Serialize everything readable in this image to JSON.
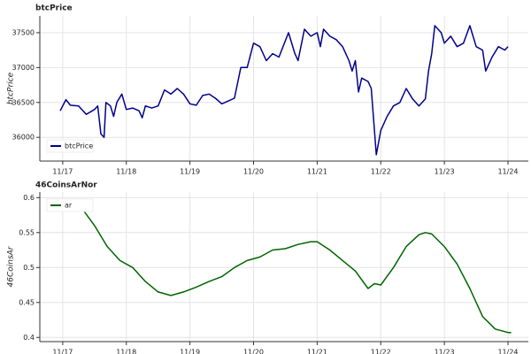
{
  "chart_data": [
    {
      "type": "line",
      "title": "btcPrice",
      "ylabel": "btcPrice",
      "legend": "lower left",
      "grid": true,
      "xlim": [
        16.64,
        24.32
      ],
      "ylim": [
        35660,
        37740
      ],
      "xticks": [
        {
          "value": 17,
          "label": "11/17"
        },
        {
          "value": 18,
          "label": "11/18"
        },
        {
          "value": 19,
          "label": "11/19"
        },
        {
          "value": 20,
          "label": "11/20"
        },
        {
          "value": 21,
          "label": "11/21"
        },
        {
          "value": 22,
          "label": "11/22"
        },
        {
          "value": 23,
          "label": "11/23"
        },
        {
          "value": 24,
          "label": "11/24"
        }
      ],
      "yticks": [
        36000,
        36500,
        37000,
        37500
      ],
      "x": [
        16.96,
        17.05,
        17.12,
        17.25,
        17.37,
        17.5,
        17.55,
        17.6,
        17.65,
        17.68,
        17.75,
        17.8,
        17.85,
        17.93,
        18.0,
        18.1,
        18.2,
        18.25,
        18.3,
        18.4,
        18.5,
        18.6,
        18.7,
        18.8,
        18.9,
        19.0,
        19.1,
        19.2,
        19.3,
        19.4,
        19.5,
        19.6,
        19.7,
        19.8,
        19.9,
        20.0,
        20.1,
        20.2,
        20.3,
        20.4,
        20.55,
        20.65,
        20.7,
        20.8,
        20.9,
        21.0,
        21.05,
        21.1,
        21.2,
        21.3,
        21.4,
        21.5,
        21.55,
        21.6,
        21.65,
        21.7,
        21.8,
        21.85,
        21.93,
        22.0,
        22.1,
        22.2,
        22.3,
        22.4,
        22.5,
        22.6,
        22.7,
        22.75,
        22.8,
        22.85,
        22.95,
        23.0,
        23.1,
        23.2,
        23.3,
        23.4,
        23.5,
        23.6,
        23.65,
        23.75,
        23.85,
        23.95,
        24.0
      ],
      "series": [
        {
          "name": "btcPrice",
          "color": "#00008b",
          "values": [
            36380,
            36540,
            36460,
            36450,
            36330,
            36400,
            36450,
            36050,
            36000,
            36500,
            36450,
            36300,
            36500,
            36620,
            36400,
            36420,
            36380,
            36280,
            36450,
            36420,
            36450,
            36680,
            36620,
            36700,
            36620,
            36480,
            36460,
            36600,
            36620,
            36560,
            36480,
            36520,
            36560,
            37000,
            37000,
            37350,
            37300,
            37100,
            37200,
            37150,
            37500,
            37200,
            37100,
            37550,
            37450,
            37500,
            37300,
            37550,
            37450,
            37400,
            37300,
            37100,
            36950,
            37100,
            36650,
            36850,
            36800,
            36700,
            35750,
            36100,
            36300,
            36450,
            36500,
            36700,
            36550,
            36450,
            36550,
            36950,
            37200,
            37600,
            37500,
            37350,
            37450,
            37300,
            37350,
            37600,
            37300,
            37250,
            36950,
            37150,
            37300,
            37250,
            37300
          ]
        }
      ]
    },
    {
      "type": "line",
      "title": "46CoinsArNor",
      "ylabel": "46CoinsAr",
      "legend": "upper left",
      "grid": true,
      "xlim": [
        16.64,
        24.32
      ],
      "ylim": [
        0.394,
        0.608
      ],
      "xticks": [
        {
          "value": 17,
          "label": "11/17"
        },
        {
          "value": 18,
          "label": "11/18"
        },
        {
          "value": 19,
          "label": "11/19"
        },
        {
          "value": 20,
          "label": "11/20"
        },
        {
          "value": 21,
          "label": "11/21"
        },
        {
          "value": 22,
          "label": "11/22"
        },
        {
          "value": 23,
          "label": "11/23"
        },
        {
          "value": 24,
          "label": "11/24"
        }
      ],
      "yticks": [
        0.4,
        0.45,
        0.5,
        0.55,
        0.6
      ],
      "x": [
        17.3,
        17.5,
        17.7,
        17.9,
        18.1,
        18.3,
        18.5,
        18.7,
        18.9,
        19.1,
        19.3,
        19.5,
        19.7,
        19.9,
        20.1,
        20.3,
        20.5,
        20.7,
        20.9,
        21.0,
        21.2,
        21.4,
        21.6,
        21.8,
        21.9,
        22.0,
        22.2,
        22.4,
        22.6,
        22.7,
        22.8,
        23.0,
        23.2,
        23.4,
        23.6,
        23.8,
        24.0,
        24.05
      ],
      "series": [
        {
          "name": "ar",
          "color": "#006400",
          "values": [
            0.585,
            0.56,
            0.53,
            0.51,
            0.5,
            0.48,
            0.465,
            0.46,
            0.465,
            0.472,
            0.48,
            0.487,
            0.5,
            0.51,
            0.515,
            0.525,
            0.527,
            0.533,
            0.537,
            0.537,
            0.525,
            0.51,
            0.495,
            0.47,
            0.477,
            0.475,
            0.5,
            0.53,
            0.547,
            0.55,
            0.548,
            0.53,
            0.505,
            0.47,
            0.43,
            0.412,
            0.407,
            0.407
          ]
        }
      ]
    }
  ]
}
